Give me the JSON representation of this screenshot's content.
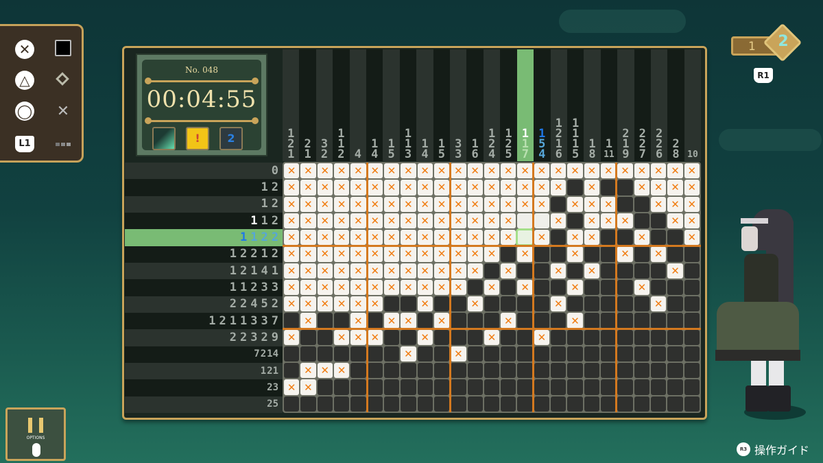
{
  "controls": [
    {
      "button": "cross",
      "action": "fill"
    },
    {
      "button": "triangle",
      "action": "mark"
    },
    {
      "button": "circle",
      "action": "cross"
    },
    {
      "button": "L1",
      "action": "range"
    }
  ],
  "info": {
    "puzzle_number": "No. 048",
    "timer": "00:04:55"
  },
  "mode_toggle": {
    "left": "1",
    "right": "2",
    "shoulder": "R1"
  },
  "pause": {
    "label": "OPTIONS"
  },
  "guide": {
    "label": "操作ガイド",
    "button": "R3"
  },
  "colors": {
    "accent": "#c9a45a",
    "x_mark": "#f07d12",
    "highlight": "#79bb74",
    "blue": "#2a7fe0",
    "separator": "#d4791f"
  },
  "column_clues": [
    [
      1,
      2,
      1
    ],
    [
      2,
      1
    ],
    [
      3,
      2
    ],
    [
      1,
      1,
      2
    ],
    [
      4
    ],
    [
      1,
      4
    ],
    [
      1,
      5
    ],
    [
      1,
      1,
      3
    ],
    [
      1,
      4
    ],
    [
      1,
      5
    ],
    [
      3,
      3
    ],
    [
      1,
      6
    ],
    [
      1,
      2,
      4
    ],
    [
      1,
      2,
      5
    ],
    [
      1,
      1,
      7
    ],
    [
      1,
      5,
      4
    ],
    [
      1,
      2,
      1,
      6
    ],
    [
      1,
      1,
      1,
      5
    ],
    [
      1,
      8
    ],
    [
      1,
      11
    ],
    [
      2,
      1,
      9
    ],
    [
      2,
      2,
      7
    ],
    [
      2,
      2,
      6
    ],
    [
      2,
      8
    ],
    [
      10
    ]
  ],
  "row_clues": [
    [
      0
    ],
    [
      1,
      2
    ],
    [
      1,
      2
    ],
    [
      1,
      1,
      2
    ],
    [
      1,
      1,
      2,
      2
    ],
    [
      1,
      2,
      2,
      1,
      2
    ],
    [
      1,
      2,
      1,
      4,
      1
    ],
    [
      1,
      1,
      2,
      3,
      3
    ],
    [
      2,
      2,
      4,
      5,
      2
    ],
    [
      1,
      2,
      1,
      1,
      3,
      3,
      7
    ],
    [
      2,
      2,
      3,
      2,
      9
    ],
    [
      7,
      2,
      14
    ],
    [
      1,
      21
    ],
    [
      23
    ],
    [
      25
    ]
  ],
  "clue_highlights": {
    "rows": {
      "3": [
        "white"
      ],
      "4": [
        "blue",
        "lightblue",
        "lightblue",
        "lightblue"
      ]
    },
    "columns": {
      "14": [
        "white"
      ],
      "15": [
        "blue",
        "lightblue",
        "lightblue"
      ]
    }
  },
  "cursor": {
    "row": 5,
    "column": 15
  },
  "grid": [
    "XXXXXXXXXXXXXXXXXXXXXXXXX",
    "XXXXXXXXXXXXXXXXX#X##XXXX",
    "XXXXXXXXXXXXXXXX#XXX##XXX",
    "XXXXXXXXXXXXXX..X#XXX##XX",
    "XXXXXXXXXXXXXX.X#XX##X##X",
    "XXXXXXXXXXXXX#X##X##X#X##",
    "XXXXXXXXXXXX#X##X#X####X#",
    "XXXXXXXXXXX#X#X##X###X###",
    "XXXXXX##X##X####X#####X##",
    "#X##X#XX#X###X###X#######",
    "X##XXX##X###X##X#########",
    "#######X##X##############",
    "#XXX#####################",
    "XX#######################",
    "#########################"
  ]
}
